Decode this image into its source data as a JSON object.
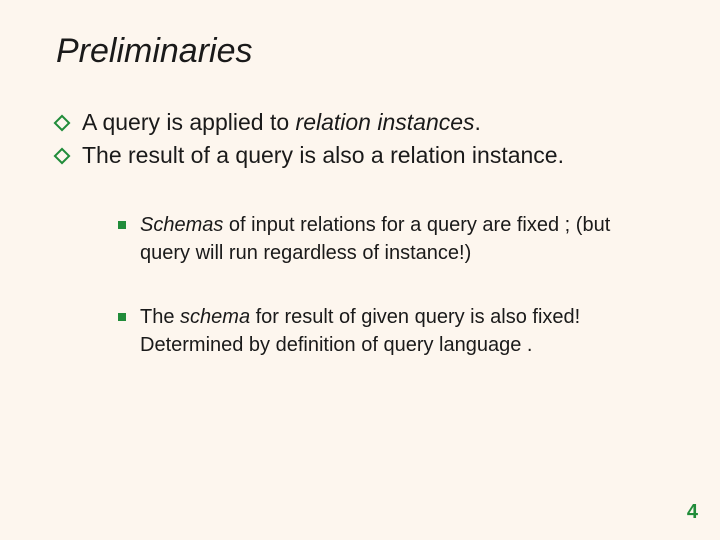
{
  "colors": {
    "background": "#fdf6ee",
    "accent": "#218c3a",
    "text": "#1a1a1a"
  },
  "typography": {
    "title": {
      "font_size_pt": 26,
      "style": "italic",
      "family": "Arial"
    },
    "body": {
      "font_size_pt": 17,
      "family": "Arial"
    },
    "sub": {
      "font_size_pt": 15,
      "family": "Arial"
    }
  },
  "title": "Preliminaries",
  "bullets": [
    {
      "prefix": "A query is applied to ",
      "em": "relation instances",
      "suffix": "."
    },
    {
      "prefix": "The result of a query is also a relation instance.",
      "em": "",
      "suffix": ""
    }
  ],
  "sub_bullets": [
    {
      "em": "Schemas",
      "rest": " of input relations for a query are fixed ; (but query will run regardless of instance!)"
    },
    {
      "pre": "The ",
      "em": "schema",
      "rest": " for result of given query is also fixed! Determined by definition of query language ."
    }
  ],
  "page_number": "4"
}
